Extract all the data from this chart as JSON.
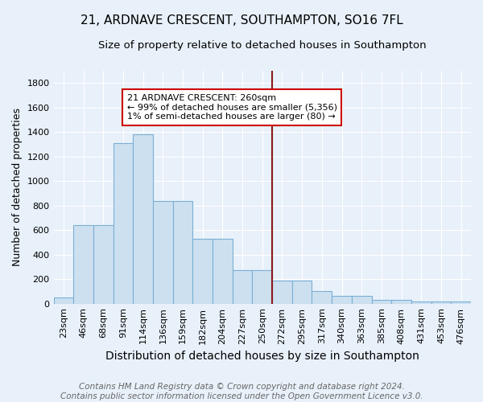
{
  "title": "21, ARDNAVE CRESCENT, SOUTHAMPTON, SO16 7FL",
  "subtitle": "Size of property relative to detached houses in Southampton",
  "xlabel": "Distribution of detached houses by size in Southampton",
  "ylabel": "Number of detached properties",
  "footer_line1": "Contains HM Land Registry data © Crown copyright and database right 2024.",
  "footer_line2": "Contains public sector information licensed under the Open Government Licence v3.0.",
  "annotation_title": "21 ARDNAVE CRESCENT: 260sqm",
  "annotation_line2": "← 99% of detached houses are smaller (5,356)",
  "annotation_line3": "1% of semi-detached houses are larger (80) →",
  "categories": [
    "23sqm",
    "46sqm",
    "68sqm",
    "91sqm",
    "114sqm",
    "136sqm",
    "159sqm",
    "182sqm",
    "204sqm",
    "227sqm",
    "250sqm",
    "272sqm",
    "295sqm",
    "317sqm",
    "340sqm",
    "363sqm",
    "385sqm",
    "408sqm",
    "431sqm",
    "453sqm",
    "476sqm"
  ],
  "values": [
    50,
    640,
    640,
    1310,
    1380,
    840,
    840,
    530,
    530,
    270,
    270,
    185,
    185,
    105,
    65,
    65,
    30,
    30,
    15,
    15,
    15
  ],
  "bar_color": "#cde0f0",
  "bar_edge_color": "#7aafd4",
  "red_line_index": 11,
  "ylim": [
    0,
    1900
  ],
  "yticks": [
    0,
    200,
    400,
    600,
    800,
    1000,
    1200,
    1400,
    1600,
    1800
  ],
  "background_color": "#e8f1fa",
  "plot_bg_color": "#e8f1fa",
  "title_fontsize": 11,
  "subtitle_fontsize": 9.5,
  "xlabel_fontsize": 10,
  "ylabel_fontsize": 9,
  "footer_fontsize": 7.5,
  "tick_fontsize": 8
}
